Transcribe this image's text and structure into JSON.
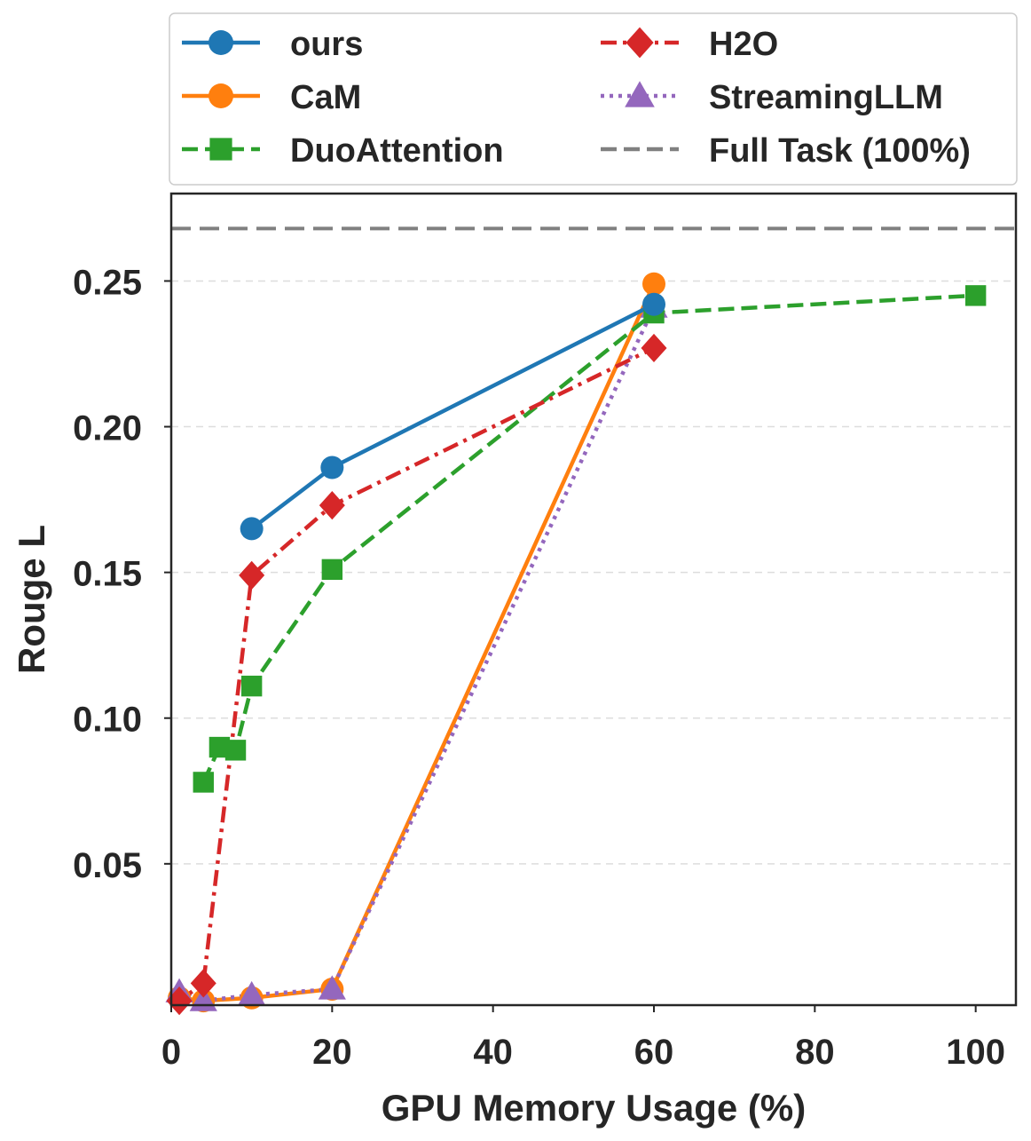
{
  "chart_data": {
    "type": "line",
    "xlabel": "GPU Memory Usage (%)",
    "ylabel": "Rouge L",
    "xlim": [
      0,
      105
    ],
    "ylim": [
      0.0015,
      0.28
    ],
    "x_ticks": [
      0,
      20,
      40,
      60,
      80,
      100
    ],
    "y_ticks": [
      0.05,
      0.1,
      0.15,
      0.2,
      0.25
    ],
    "grid": "horizontal dashed",
    "legend_position": "above plot, two columns",
    "reference_line": {
      "name": "Full Task (100%)",
      "y": 0.268,
      "color": "#808080",
      "style": "dashed"
    },
    "series": [
      {
        "name": "ours",
        "color": "#1f77b4",
        "marker": "circle",
        "line_style": "solid",
        "x": [
          10,
          20,
          60
        ],
        "y": [
          0.165,
          0.186,
          0.242
        ]
      },
      {
        "name": "CaM",
        "color": "#ff7f0e",
        "marker": "circle",
        "line_style": "solid",
        "x": [
          1,
          4,
          10,
          20,
          60
        ],
        "y": [
          0.004,
          0.003,
          0.004,
          0.007,
          0.249
        ]
      },
      {
        "name": "DuoAttention",
        "color": "#2ca02c",
        "marker": "square",
        "line_style": "dashed",
        "x": [
          4,
          6,
          8,
          10,
          20,
          60,
          100
        ],
        "y": [
          0.078,
          0.09,
          0.089,
          0.111,
          0.151,
          0.239,
          0.245
        ]
      },
      {
        "name": "H2O",
        "color": "#d62728",
        "marker": "diamond",
        "line_style": "dashdot",
        "x": [
          1,
          4,
          10,
          20,
          60
        ],
        "y": [
          0.003,
          0.009,
          0.149,
          0.173,
          0.227
        ]
      },
      {
        "name": "StreamingLLM",
        "color": "#9467bd",
        "marker": "triangle",
        "line_style": "dotted",
        "x": [
          1,
          4,
          10,
          20,
          60
        ],
        "y": [
          0.006,
          0.003,
          0.005,
          0.007,
          0.241
        ]
      }
    ],
    "legend_entries": [
      "ours",
      "CaM",
      "DuoAttention",
      "H2O",
      "StreamingLLM",
      "Full Task (100%)"
    ]
  }
}
